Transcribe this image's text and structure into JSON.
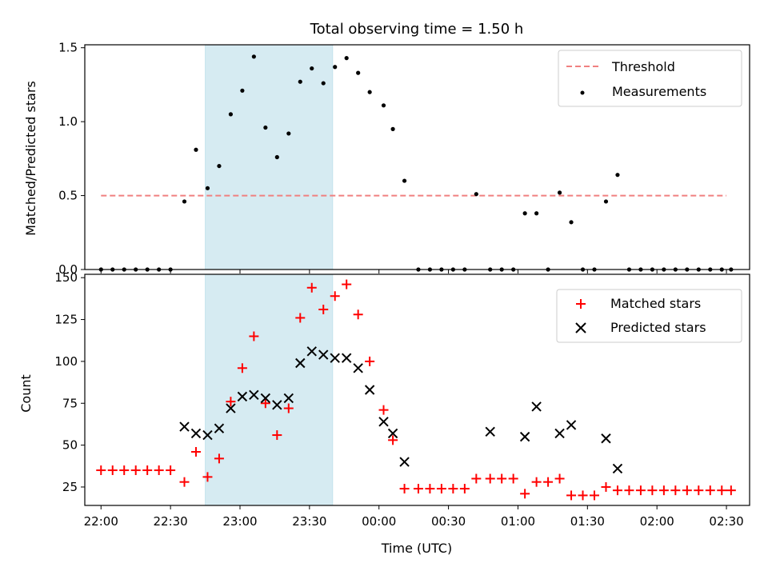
{
  "title": "Total observing time = 1.50 h",
  "x_axis": {
    "label": "Time (UTC)",
    "tick_labels": [
      "22:00",
      "22:30",
      "23:00",
      "23:30",
      "00:00",
      "00:30",
      "01:00",
      "01:30",
      "02:00",
      "02:30"
    ]
  },
  "chart_data": [
    {
      "type": "scatter",
      "panel": "top",
      "ylabel": "Matched/Predicted stars",
      "ylim": [
        0,
        1.52
      ],
      "yticks": [
        "0.0",
        "0.5",
        "1.0",
        "1.5"
      ],
      "xlim": [
        "21:53",
        "02:40"
      ],
      "shaded_span": [
        "22:45",
        "23:40"
      ],
      "legend_placement": "upper right",
      "threshold": {
        "name": "Threshold",
        "value": 0.5,
        "x_range": [
          "22:00",
          "02:30"
        ],
        "color": "#f08080",
        "style": "dashed"
      },
      "series": [
        {
          "name": "Measurements",
          "color": "#000000",
          "marker": "dot",
          "x": [
            "22:00",
            "22:05",
            "22:10",
            "22:15",
            "22:20",
            "22:25",
            "22:30",
            "22:36",
            "22:41",
            "22:46",
            "22:51",
            "22:56",
            "23:01",
            "23:06",
            "23:11",
            "23:16",
            "23:21",
            "23:26",
            "23:31",
            "23:36",
            "23:41",
            "23:46",
            "23:51",
            "23:56",
            "00:02",
            "00:06",
            "00:11",
            "00:17",
            "00:22",
            "00:27",
            "00:32",
            "00:37",
            "00:42",
            "00:48",
            "00:53",
            "00:58",
            "01:03",
            "01:08",
            "01:13",
            "01:18",
            "01:23",
            "01:28",
            "01:33",
            "01:38",
            "01:43",
            "01:48",
            "01:53",
            "01:58",
            "02:03",
            "02:08",
            "02:13",
            "02:18",
            "02:23",
            "02:28",
            "02:32"
          ],
          "y": [
            0,
            0,
            0,
            0,
            0,
            0,
            0,
            0.46,
            0.81,
            0.55,
            0.7,
            1.05,
            1.21,
            1.44,
            0.96,
            0.76,
            0.92,
            1.27,
            1.36,
            1.26,
            1.37,
            1.43,
            1.33,
            1.2,
            1.11,
            0.95,
            0.6,
            0,
            0,
            0,
            0,
            0,
            0.51,
            0,
            0,
            0,
            0.38,
            0.38,
            0,
            0.52,
            0.32,
            0,
            0,
            0.46,
            0.64,
            0,
            0,
            0,
            0,
            0,
            0,
            0,
            0,
            0,
            0
          ]
        }
      ]
    },
    {
      "type": "scatter",
      "panel": "bottom",
      "ylabel": "Count",
      "ylim": [
        14,
        152
      ],
      "yticks": [
        "25",
        "50",
        "75",
        "100",
        "125",
        "150"
      ],
      "xlim": [
        "21:53",
        "02:40"
      ],
      "shaded_span": [
        "22:45",
        "23:40"
      ],
      "legend_placement": "upper right",
      "series": [
        {
          "name": "Matched stars",
          "color": "#ff0000",
          "marker": "plus",
          "x": [
            "22:00",
            "22:05",
            "22:10",
            "22:15",
            "22:20",
            "22:25",
            "22:30",
            "22:36",
            "22:41",
            "22:46",
            "22:51",
            "22:56",
            "23:01",
            "23:06",
            "23:11",
            "23:16",
            "23:21",
            "23:26",
            "23:31",
            "23:36",
            "23:41",
            "23:46",
            "23:51",
            "23:56",
            "00:02",
            "00:06",
            "00:11",
            "00:17",
            "00:22",
            "00:27",
            "00:32",
            "00:37",
            "00:42",
            "00:48",
            "00:53",
            "00:58",
            "01:03",
            "01:08",
            "01:13",
            "01:18",
            "01:23",
            "01:28",
            "01:33",
            "01:38",
            "01:43",
            "01:48",
            "01:53",
            "01:58",
            "02:03",
            "02:08",
            "02:13",
            "02:18",
            "02:23",
            "02:28",
            "02:32"
          ],
          "y": [
            35,
            35,
            35,
            35,
            35,
            35,
            35,
            28,
            46,
            31,
            42,
            76,
            96,
            115,
            75,
            56,
            72,
            126,
            144,
            131,
            139,
            146,
            128,
            100,
            71,
            53,
            24,
            24,
            24,
            24,
            24,
            24,
            30,
            30,
            30,
            30,
            21,
            28,
            28,
            30,
            20,
            20,
            20,
            25,
            23,
            23,
            23,
            23,
            23,
            23,
            23,
            23,
            23,
            23,
            23
          ]
        },
        {
          "name": "Predicted stars",
          "color": "#000000",
          "marker": "x",
          "x": [
            "22:36",
            "22:41",
            "22:46",
            "22:51",
            "22:56",
            "23:01",
            "23:06",
            "23:11",
            "23:16",
            "23:21",
            "23:26",
            "23:31",
            "23:36",
            "23:41",
            "23:46",
            "23:51",
            "23:56",
            "00:02",
            "00:06",
            "00:11",
            "00:48",
            "01:03",
            "01:08",
            "01:18",
            "01:23",
            "01:38",
            "01:43"
          ],
          "y": [
            61,
            57,
            56,
            60,
            72,
            79,
            80,
            78,
            74,
            78,
            99,
            106,
            104,
            102,
            102,
            96,
            83,
            64,
            57,
            40,
            58,
            55,
            73,
            57,
            62,
            54,
            36
          ]
        }
      ]
    }
  ]
}
